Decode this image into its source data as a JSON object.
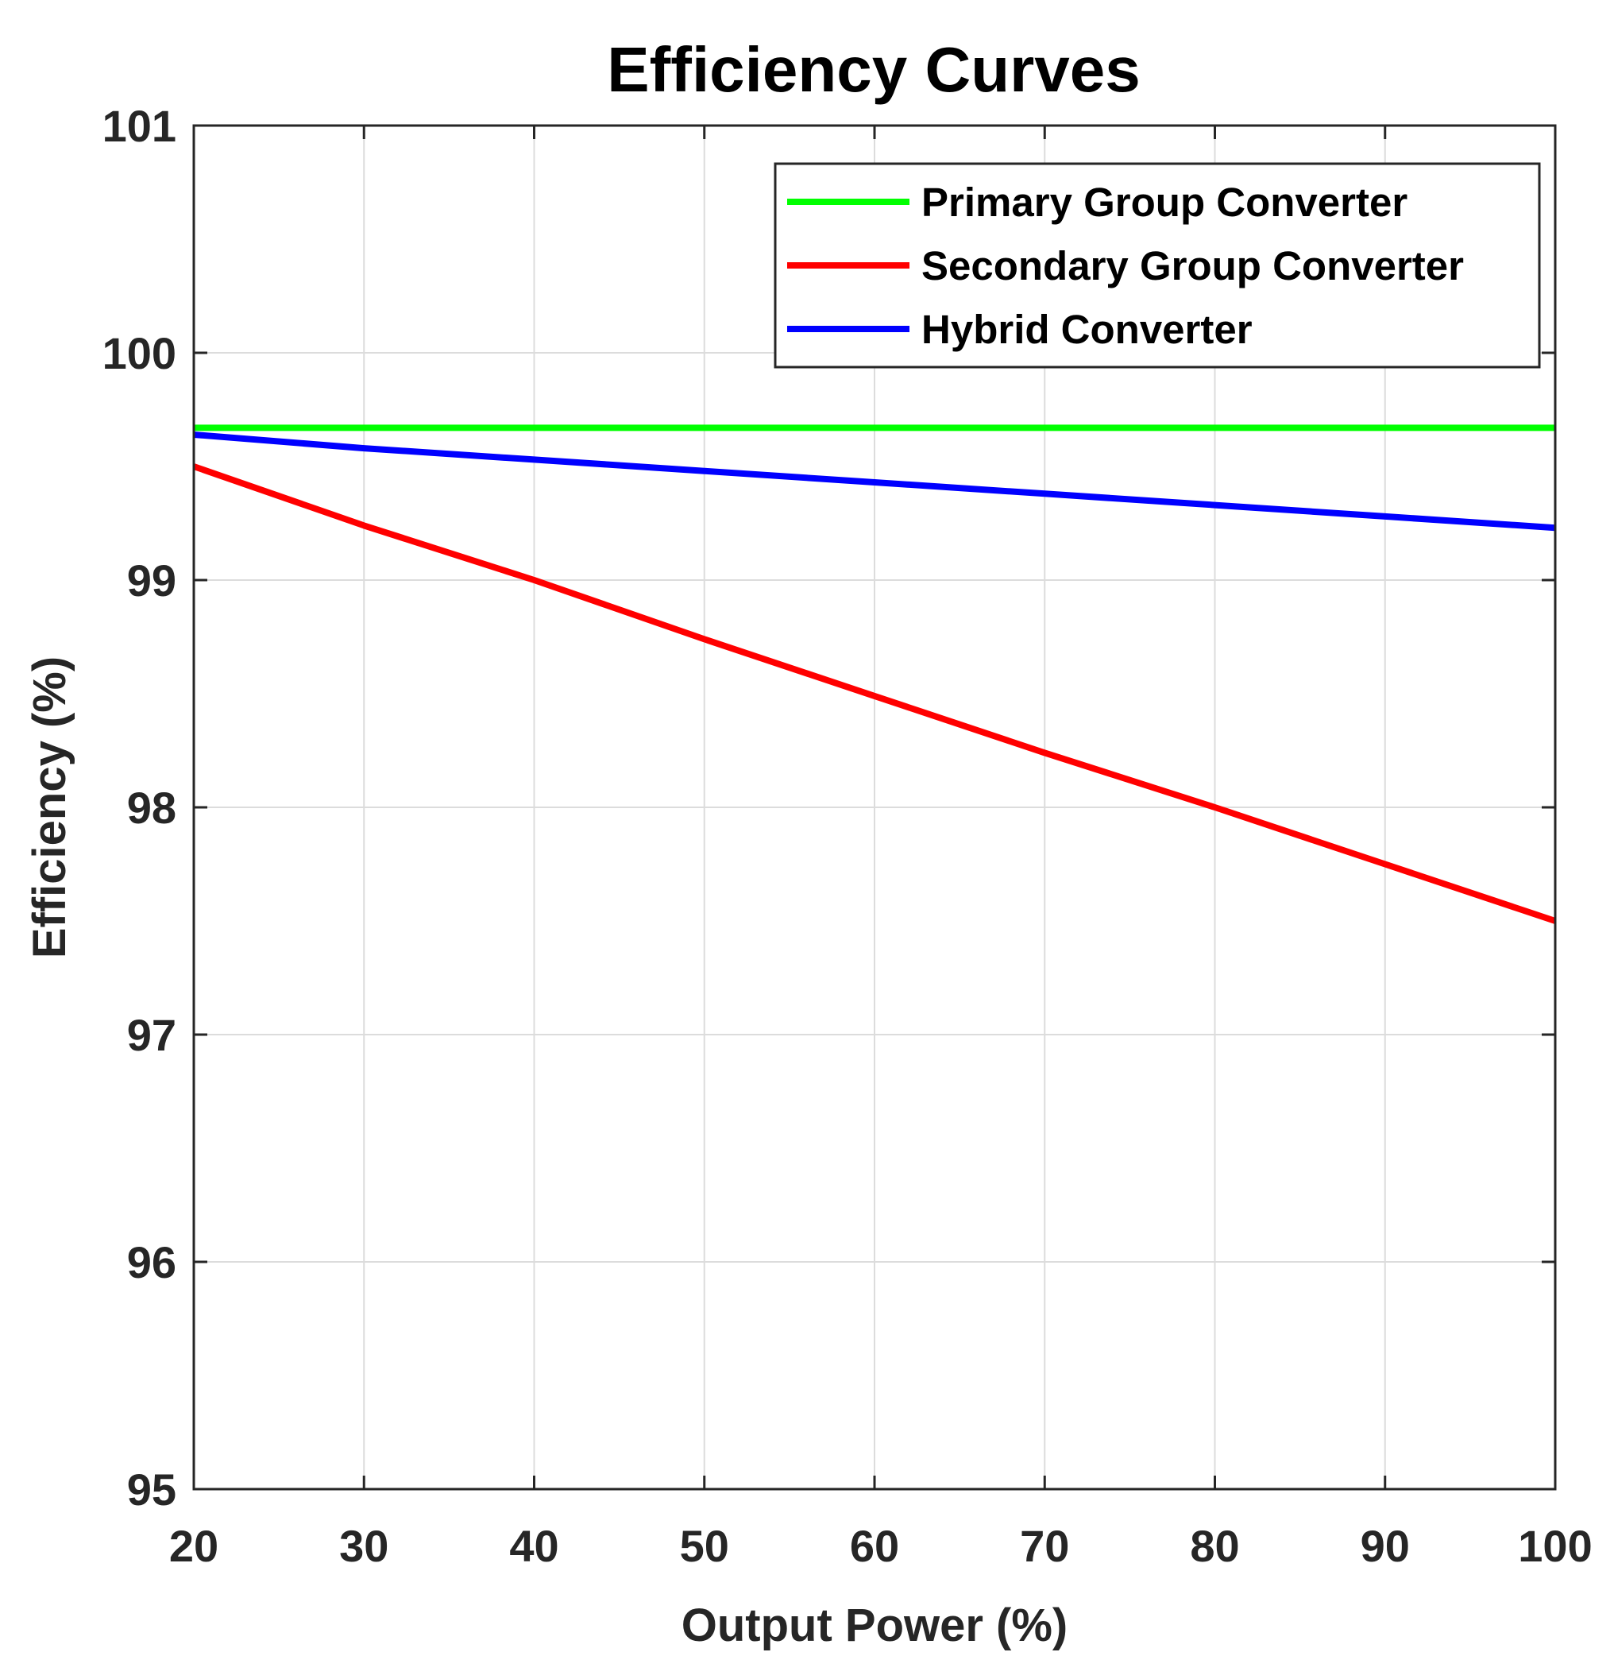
{
  "chart_data": {
    "type": "line",
    "title": "Efficiency Curves",
    "xlabel": "Output Power (%)",
    "ylabel": "Efficiency (%)",
    "xlim": [
      20,
      100
    ],
    "ylim": [
      95,
      101
    ],
    "xticks": [
      20,
      30,
      40,
      50,
      60,
      70,
      80,
      90,
      100
    ],
    "yticks": [
      95,
      96,
      97,
      98,
      99,
      100,
      101
    ],
    "xtick_labels": [
      "20",
      "30",
      "40",
      "50",
      "60",
      "70",
      "80",
      "90",
      "100"
    ],
    "ytick_labels": [
      "95",
      "96",
      "97",
      "98",
      "99",
      "100",
      "101"
    ],
    "grid": true,
    "legend_position": "top-right",
    "series": [
      {
        "name": "Primary Group Converter",
        "color": "#00ff00",
        "x": [
          20,
          30,
          40,
          50,
          60,
          70,
          80,
          90,
          100
        ],
        "y": [
          99.67,
          99.67,
          99.67,
          99.67,
          99.67,
          99.67,
          99.67,
          99.67,
          99.67
        ]
      },
      {
        "name": "Secondary Group Converter",
        "color": "#ff0000",
        "x": [
          20,
          30,
          40,
          50,
          60,
          70,
          80,
          90,
          100
        ],
        "y": [
          99.5,
          99.24,
          99.0,
          98.74,
          98.49,
          98.24,
          98.0,
          97.75,
          97.5
        ]
      },
      {
        "name": "Hybrid Converter",
        "color": "#0000ff",
        "x": [
          20,
          30,
          40,
          50,
          60,
          70,
          80,
          90,
          100
        ],
        "y": [
          99.64,
          99.58,
          99.53,
          99.48,
          99.43,
          99.38,
          99.33,
          99.28,
          99.23
        ]
      }
    ]
  }
}
